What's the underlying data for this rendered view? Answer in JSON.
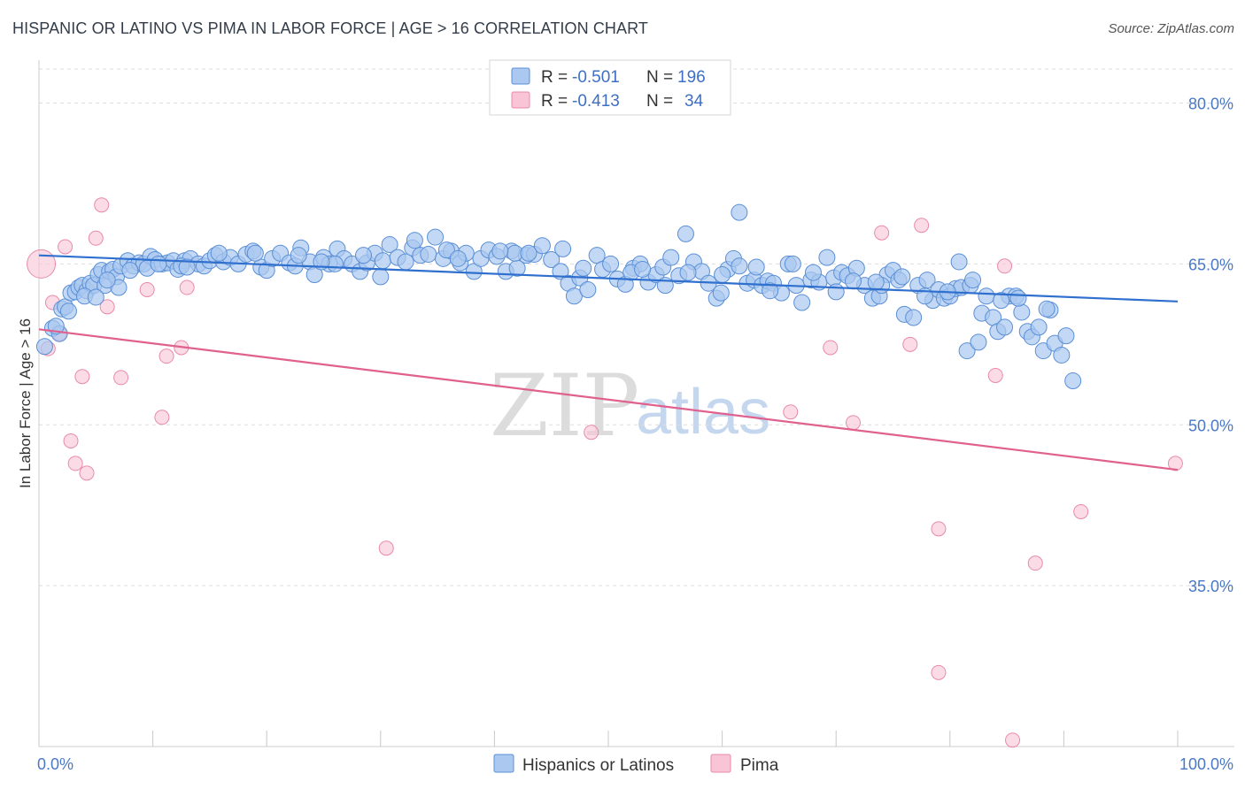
{
  "title": "HISPANIC OR LATINO VS PIMA IN LABOR FORCE | AGE > 16 CORRELATION CHART",
  "source": "Source: ZipAtlas.com",
  "watermark": {
    "zip": "ZIP",
    "atlas": "atlas"
  },
  "colors": {
    "blue_fill": "#aac8f0",
    "blue_stroke": "#5a8fd6",
    "blue_line": "#2f6fce",
    "pink_fill": "#f8c4d6",
    "pink_stroke": "#e88aaa",
    "pink_line": "#e0608e",
    "grid": "#dddddd",
    "tick_text": "#4a78c6"
  },
  "legend": {
    "rows": [
      {
        "r_label": "R =",
        "r_value": "-0.501",
        "n_label": "N =",
        "n_value": "196"
      },
      {
        "r_label": "R =",
        "r_value": "-0.413",
        "n_label": "N =",
        "n_value": "34"
      }
    ]
  },
  "bottom_legend": [
    "Hispanics or Latinos",
    "Pima"
  ],
  "chart_data": {
    "type": "scatter",
    "xlabel": "",
    "ylabel": "In Labor Force | Age > 16",
    "xlim": [
      0,
      100
    ],
    "ylim": [
      20,
      84
    ],
    "x_tick_labels": [
      "0.0%",
      "100.0%"
    ],
    "y_ticks": [
      35,
      50,
      65,
      80
    ],
    "y_tick_labels": [
      "35.0%",
      "50.0%",
      "65.0%",
      "80.0%"
    ],
    "grid": true,
    "series": [
      {
        "name": "Hispanics or Latinos",
        "trend": {
          "x": [
            0,
            100
          ],
          "y": [
            65.8,
            61.5
          ]
        },
        "points": [
          [
            0.5,
            57.3
          ],
          [
            1.2,
            59.0
          ],
          [
            1.8,
            58.5
          ],
          [
            2.0,
            60.8
          ],
          [
            2.3,
            61.0
          ],
          [
            2.8,
            62.3
          ],
          [
            3.2,
            62.4
          ],
          [
            3.5,
            62.8
          ],
          [
            3.8,
            63.0
          ],
          [
            4.2,
            62.5
          ],
          [
            4.5,
            63.2
          ],
          [
            4.8,
            63.0
          ],
          [
            5.2,
            64.0
          ],
          [
            5.5,
            64.4
          ],
          [
            5.8,
            63.0
          ],
          [
            6.2,
            64.3
          ],
          [
            6.5,
            64.5
          ],
          [
            6.8,
            63.8
          ],
          [
            7.2,
            64.8
          ],
          [
            7.8,
            65.3
          ],
          [
            8.3,
            64.8
          ],
          [
            8.8,
            65.1
          ],
          [
            9.2,
            65.0
          ],
          [
            9.8,
            65.7
          ],
          [
            10.2,
            65.4
          ],
          [
            10.8,
            65.0
          ],
          [
            11.3,
            65.1
          ],
          [
            11.8,
            65.3
          ],
          [
            12.2,
            64.5
          ],
          [
            12.8,
            65.3
          ],
          [
            13.3,
            65.5
          ],
          [
            14.0,
            65.0
          ],
          [
            14.5,
            64.8
          ],
          [
            15.0,
            65.3
          ],
          [
            15.5,
            65.8
          ],
          [
            16.2,
            65.2
          ],
          [
            16.8,
            65.6
          ],
          [
            17.5,
            65.0
          ],
          [
            18.2,
            65.9
          ],
          [
            18.8,
            66.2
          ],
          [
            19.5,
            64.7
          ],
          [
            20.0,
            64.4
          ],
          [
            20.5,
            65.5
          ],
          [
            21.2,
            66.0
          ],
          [
            22.0,
            65.1
          ],
          [
            22.5,
            64.8
          ],
          [
            23.0,
            66.5
          ],
          [
            23.8,
            65.2
          ],
          [
            24.2,
            64.0
          ],
          [
            25.0,
            65.6
          ],
          [
            25.5,
            65.0
          ],
          [
            26.2,
            66.4
          ],
          [
            26.8,
            65.5
          ],
          [
            27.5,
            65.0
          ],
          [
            28.2,
            64.3
          ],
          [
            28.8,
            65.1
          ],
          [
            29.5,
            66.0
          ],
          [
            30.2,
            65.3
          ],
          [
            30.8,
            66.8
          ],
          [
            31.5,
            65.6
          ],
          [
            32.2,
            65.2
          ],
          [
            32.8,
            66.5
          ],
          [
            33.5,
            65.8
          ],
          [
            34.2,
            65.9
          ],
          [
            34.8,
            67.5
          ],
          [
            35.5,
            65.5
          ],
          [
            36.2,
            66.2
          ],
          [
            37.0,
            65.1
          ],
          [
            37.5,
            66.0
          ],
          [
            38.2,
            64.3
          ],
          [
            38.8,
            65.5
          ],
          [
            39.5,
            66.3
          ],
          [
            40.2,
            65.7
          ],
          [
            41.0,
            64.3
          ],
          [
            41.5,
            66.2
          ],
          [
            42.0,
            64.6
          ],
          [
            42.8,
            65.8
          ],
          [
            43.5,
            65.9
          ],
          [
            44.2,
            66.7
          ],
          [
            45.0,
            65.4
          ],
          [
            45.8,
            64.3
          ],
          [
            46.5,
            63.2
          ],
          [
            47.0,
            62.0
          ],
          [
            47.5,
            63.7
          ],
          [
            48.2,
            62.6
          ],
          [
            49.0,
            65.8
          ],
          [
            49.5,
            64.5
          ],
          [
            50.2,
            65.0
          ],
          [
            50.8,
            63.6
          ],
          [
            51.5,
            63.1
          ],
          [
            52.2,
            64.6
          ],
          [
            52.8,
            65.0
          ],
          [
            53.5,
            63.3
          ],
          [
            54.2,
            64.0
          ],
          [
            54.8,
            64.7
          ],
          [
            55.5,
            65.6
          ],
          [
            56.2,
            63.9
          ],
          [
            56.8,
            67.8
          ],
          [
            57.5,
            65.2
          ],
          [
            58.2,
            64.3
          ],
          [
            58.8,
            63.2
          ],
          [
            59.5,
            61.8
          ],
          [
            59.9,
            62.3
          ],
          [
            60.5,
            64.5
          ],
          [
            61.0,
            65.5
          ],
          [
            61.5,
            64.8
          ],
          [
            62.2,
            63.2
          ],
          [
            62.8,
            63.5
          ],
          [
            63.5,
            63.0
          ],
          [
            64.0,
            63.4
          ],
          [
            64.5,
            63.2
          ],
          [
            65.2,
            62.3
          ],
          [
            65.8,
            65.0
          ],
          [
            66.5,
            63.0
          ],
          [
            67.0,
            61.4
          ],
          [
            67.8,
            63.5
          ],
          [
            68.5,
            63.3
          ],
          [
            69.2,
            65.6
          ],
          [
            69.8,
            63.7
          ],
          [
            70.5,
            64.2
          ],
          [
            71.0,
            63.9
          ],
          [
            71.8,
            64.6
          ],
          [
            72.5,
            63.0
          ],
          [
            73.2,
            61.8
          ],
          [
            73.8,
            62.0
          ],
          [
            74.5,
            64.0
          ],
          [
            75.0,
            64.4
          ],
          [
            75.5,
            63.5
          ],
          [
            76.0,
            60.3
          ],
          [
            76.8,
            60.0
          ],
          [
            77.2,
            63.0
          ],
          [
            78.0,
            63.5
          ],
          [
            78.5,
            61.6
          ],
          [
            79.0,
            62.6
          ],
          [
            79.5,
            61.8
          ],
          [
            80.0,
            62.0
          ],
          [
            80.5,
            62.7
          ],
          [
            81.0,
            62.8
          ],
          [
            81.5,
            56.9
          ],
          [
            81.8,
            63.0
          ],
          [
            82.5,
            57.7
          ],
          [
            82.8,
            60.4
          ],
          [
            83.2,
            62.0
          ],
          [
            83.8,
            60.0
          ],
          [
            84.2,
            58.7
          ],
          [
            84.8,
            59.1
          ],
          [
            85.2,
            62.0
          ],
          [
            85.8,
            62.0
          ],
          [
            86.3,
            60.5
          ],
          [
            86.8,
            58.7
          ],
          [
            87.2,
            58.2
          ],
          [
            87.8,
            59.1
          ],
          [
            88.2,
            56.9
          ],
          [
            88.8,
            60.7
          ],
          [
            89.2,
            57.6
          ],
          [
            89.8,
            56.5
          ],
          [
            90.2,
            58.3
          ],
          [
            90.8,
            54.1
          ],
          [
            26.0,
            65.0
          ],
          [
            30.0,
            63.8
          ],
          [
            35.8,
            66.3
          ],
          [
            41.8,
            66.0
          ],
          [
            52.0,
            64.2
          ],
          [
            55.0,
            63.0
          ],
          [
            61.5,
            69.8
          ],
          [
            64.2,
            62.5
          ],
          [
            70.0,
            62.4
          ],
          [
            74.0,
            63.0
          ],
          [
            77.8,
            62.0
          ],
          [
            80.8,
            65.2
          ],
          [
            7.0,
            62.8
          ],
          [
            9.5,
            64.6
          ],
          [
            12.5,
            64.8
          ],
          [
            15.8,
            66.0
          ],
          [
            19.0,
            66.0
          ],
          [
            22.8,
            65.8
          ],
          [
            24.8,
            65.2
          ],
          [
            28.5,
            65.8
          ],
          [
            33.0,
            67.2
          ],
          [
            36.8,
            65.5
          ],
          [
            40.5,
            66.2
          ],
          [
            43.0,
            66.0
          ],
          [
            46.0,
            66.4
          ],
          [
            47.8,
            64.6
          ],
          [
            53.0,
            64.5
          ],
          [
            57.0,
            64.2
          ],
          [
            60.0,
            64.0
          ],
          [
            63.0,
            64.7
          ],
          [
            66.2,
            65.0
          ],
          [
            68.0,
            64.2
          ],
          [
            71.5,
            63.4
          ],
          [
            73.5,
            63.3
          ],
          [
            75.8,
            63.8
          ],
          [
            79.8,
            62.4
          ],
          [
            82.0,
            63.5
          ],
          [
            84.5,
            61.6
          ],
          [
            86.0,
            61.8
          ],
          [
            88.5,
            60.8
          ],
          [
            1.5,
            59.2
          ],
          [
            2.6,
            60.6
          ],
          [
            4.0,
            62.0
          ],
          [
            5.0,
            61.9
          ],
          [
            6.0,
            63.5
          ],
          [
            8.0,
            64.4
          ],
          [
            10.5,
            65.0
          ],
          [
            13.0,
            64.7
          ]
        ]
      },
      {
        "name": "Pima",
        "trend": {
          "x": [
            0,
            100
          ],
          "y": [
            58.9,
            45.8
          ]
        },
        "points": [
          [
            0.2,
            65.0
          ],
          [
            0.8,
            57.1
          ],
          [
            1.2,
            61.4
          ],
          [
            1.8,
            58.5
          ],
          [
            2.3,
            66.6
          ],
          [
            2.8,
            48.5
          ],
          [
            3.2,
            46.4
          ],
          [
            3.8,
            54.5
          ],
          [
            4.2,
            45.5
          ],
          [
            5.0,
            67.4
          ],
          [
            5.5,
            70.5
          ],
          [
            6.0,
            61.0
          ],
          [
            7.2,
            54.4
          ],
          [
            9.5,
            62.6
          ],
          [
            10.8,
            50.7
          ],
          [
            11.2,
            56.4
          ],
          [
            12.5,
            57.2
          ],
          [
            13.0,
            62.8
          ],
          [
            30.5,
            38.5
          ],
          [
            48.5,
            49.3
          ],
          [
            66.0,
            51.2
          ],
          [
            69.5,
            57.2
          ],
          [
            71.5,
            50.2
          ],
          [
            74.0,
            67.9
          ],
          [
            76.5,
            57.5
          ],
          [
            77.5,
            68.6
          ],
          [
            79.0,
            40.3
          ],
          [
            79.0,
            26.9
          ],
          [
            84.0,
            54.6
          ],
          [
            84.8,
            64.8
          ],
          [
            85.5,
            20.6
          ],
          [
            87.5,
            37.1
          ],
          [
            91.5,
            41.9
          ],
          [
            99.8,
            46.4
          ]
        ]
      }
    ]
  }
}
